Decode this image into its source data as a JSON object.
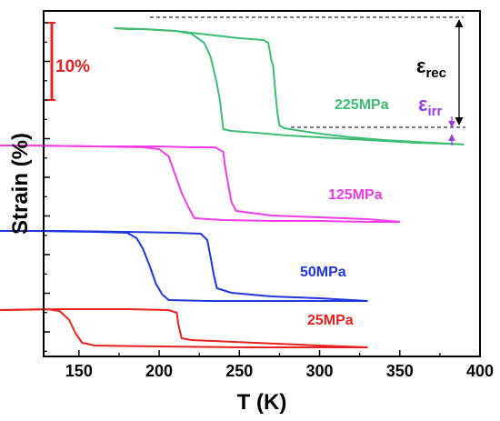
{
  "chart_data": {
    "type": "line",
    "xlabel": "T (K)",
    "ylabel": "Strain (%)",
    "xlim": [
      128,
      400
    ],
    "xticks": [
      150,
      200,
      250,
      300,
      350,
      400
    ],
    "scale_bar": {
      "label": "10%",
      "color": "#e8221f"
    },
    "annotations": {
      "eps_rec": "ε",
      "eps_rec_sub": "rec",
      "eps_irr": "ε",
      "eps_irr_sub": "irr"
    },
    "series": [
      {
        "name": "225MPa",
        "color": "#3dbd74",
        "cooling": [
          [
            172,
            19
          ],
          [
            180,
            20
          ],
          [
            190,
            20
          ],
          [
            200,
            21
          ],
          [
            210,
            22
          ],
          [
            220,
            25
          ],
          [
            228,
            35
          ],
          [
            232,
            50
          ],
          [
            234,
            65
          ],
          [
            236,
            80
          ],
          [
            238,
            100
          ],
          [
            240,
            130
          ],
          [
            245,
            132
          ],
          [
            260,
            134
          ],
          [
            280,
            137
          ],
          [
            300,
            139
          ],
          [
            320,
            141
          ],
          [
            340,
            143
          ],
          [
            360,
            145
          ],
          [
            380,
            146
          ],
          [
            390,
            147
          ]
        ],
        "heating": [
          [
            390,
            147
          ],
          [
            370,
            145
          ],
          [
            340,
            142
          ],
          [
            320,
            139
          ],
          [
            300,
            135
          ],
          [
            285,
            131
          ],
          [
            278,
            129
          ],
          [
            275,
            126
          ],
          [
            274,
            115
          ],
          [
            273,
            100
          ],
          [
            272,
            80
          ],
          [
            271,
            60
          ],
          [
            270,
            55
          ],
          [
            268,
            35
          ],
          [
            265,
            32
          ],
          [
            250,
            30
          ],
          [
            230,
            26
          ],
          [
            210,
            22
          ],
          [
            190,
            20
          ],
          [
            172,
            19
          ]
        ]
      },
      {
        "name": "125MPa",
        "color": "#f23ce6",
        "cooling": [
          [
            92,
            148
          ],
          [
            120,
            148
          ],
          [
            160,
            149
          ],
          [
            190,
            150
          ],
          [
            200,
            152
          ],
          [
            206,
            160
          ],
          [
            210,
            180
          ],
          [
            214,
            200
          ],
          [
            218,
            215
          ],
          [
            222,
            228
          ],
          [
            240,
            230
          ],
          [
            270,
            231
          ],
          [
            300,
            231
          ],
          [
            330,
            232
          ],
          [
            350,
            232
          ]
        ],
        "heating": [
          [
            350,
            232
          ],
          [
            330,
            229
          ],
          [
            300,
            227
          ],
          [
            270,
            225
          ],
          [
            248,
            220
          ],
          [
            245,
            210
          ],
          [
            243,
            190
          ],
          [
            241,
            170
          ],
          [
            240,
            155
          ],
          [
            235,
            150
          ],
          [
            220,
            150
          ],
          [
            200,
            149
          ],
          [
            160,
            149
          ],
          [
            120,
            148
          ],
          [
            92,
            148
          ]
        ]
      },
      {
        "name": "50MPa",
        "color": "#1f36e0",
        "cooling": [
          [
            92,
            242
          ],
          [
            120,
            242
          ],
          [
            160,
            243
          ],
          [
            180,
            244
          ],
          [
            186,
            250
          ],
          [
            190,
            262
          ],
          [
            194,
            280
          ],
          [
            198,
            300
          ],
          [
            202,
            312
          ],
          [
            206,
            318
          ],
          [
            230,
            319
          ],
          [
            270,
            319
          ],
          [
            300,
            319
          ],
          [
            330,
            319
          ]
        ],
        "heating": [
          [
            330,
            319
          ],
          [
            300,
            316
          ],
          [
            270,
            314
          ],
          [
            245,
            310
          ],
          [
            236,
            305
          ],
          [
            234,
            290
          ],
          [
            232,
            270
          ],
          [
            230,
            252
          ],
          [
            226,
            245
          ],
          [
            210,
            244
          ],
          [
            180,
            243
          ],
          [
            140,
            242
          ],
          [
            92,
            242
          ]
        ]
      },
      {
        "name": "25MPa",
        "color": "#e8221f",
        "cooling": [
          [
            65,
            330
          ],
          [
            100,
            329
          ],
          [
            130,
            328
          ],
          [
            138,
            330
          ],
          [
            144,
            340
          ],
          [
            148,
            355
          ],
          [
            152,
            365
          ],
          [
            160,
            368
          ],
          [
            200,
            369
          ],
          [
            250,
            370
          ],
          [
            300,
            370
          ],
          [
            330,
            370
          ]
        ],
        "heating": [
          [
            330,
            370
          ],
          [
            300,
            368
          ],
          [
            260,
            365
          ],
          [
            220,
            362
          ],
          [
            214,
            360
          ],
          [
            212,
            345
          ],
          [
            211,
            332
          ],
          [
            206,
            329
          ],
          [
            180,
            328
          ],
          [
            140,
            328
          ],
          [
            100,
            329
          ],
          [
            65,
            330
          ]
        ]
      }
    ]
  }
}
